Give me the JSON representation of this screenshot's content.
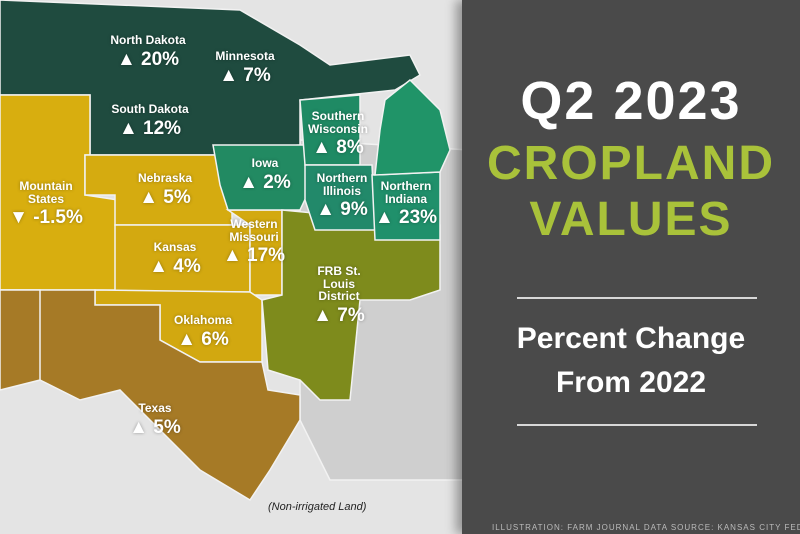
{
  "colors": {
    "panel": "#4a4a4a",
    "title_white": "#ffffff",
    "title_green": "#a9c23a",
    "dark_green": "#1e4a3e",
    "teal": "#1f8a64",
    "yellow": "#d7ad0e",
    "brown": "#a77b26",
    "olive": "#7f8c1c",
    "gray": "#cfcfcf"
  },
  "title": {
    "line1": "Q2 2023",
    "line2": "CROPLAND",
    "line3": "VALUES"
  },
  "subtitle": {
    "line1": "Percent Change",
    "line2": "From 2022"
  },
  "credit": "ILLUSTRATION: FARM JOURNAL  DATA SOURCE: KANSAS CITY FED",
  "note": "(Non-irrigated Land)",
  "regions": [
    {
      "name": "North Dakota",
      "direction": "up",
      "change": "▲ 20%"
    },
    {
      "name": "Minnesota",
      "direction": "up",
      "change": "▲ 7%"
    },
    {
      "name": "South Dakota",
      "direction": "up",
      "change": "▲ 12%"
    },
    {
      "name": "Southern Wisconsin",
      "direction": "up",
      "change": "▲ 8%"
    },
    {
      "name": "Iowa",
      "direction": "up",
      "change": "▲ 2%"
    },
    {
      "name": "Mountain States",
      "direction": "down",
      "change": "▼ -1.5%"
    },
    {
      "name": "Nebraska",
      "direction": "up",
      "change": "▲ 5%"
    },
    {
      "name": "Northern Illinois",
      "direction": "up",
      "change": "▲ 9%"
    },
    {
      "name": "Northern Indiana",
      "direction": "up",
      "change": "▲ 23%"
    },
    {
      "name": "Kansas",
      "direction": "up",
      "change": "▲ 4%"
    },
    {
      "name": "Western Missouri",
      "direction": "up",
      "change": "▲ 17%"
    },
    {
      "name": "FRB St. Louis District",
      "direction": "up",
      "change": "▲ 7%"
    },
    {
      "name": "Oklahoma",
      "direction": "up",
      "change": "▲ 6%"
    },
    {
      "name": "Texas",
      "direction": "up",
      "change": "▲ 5%"
    }
  ]
}
